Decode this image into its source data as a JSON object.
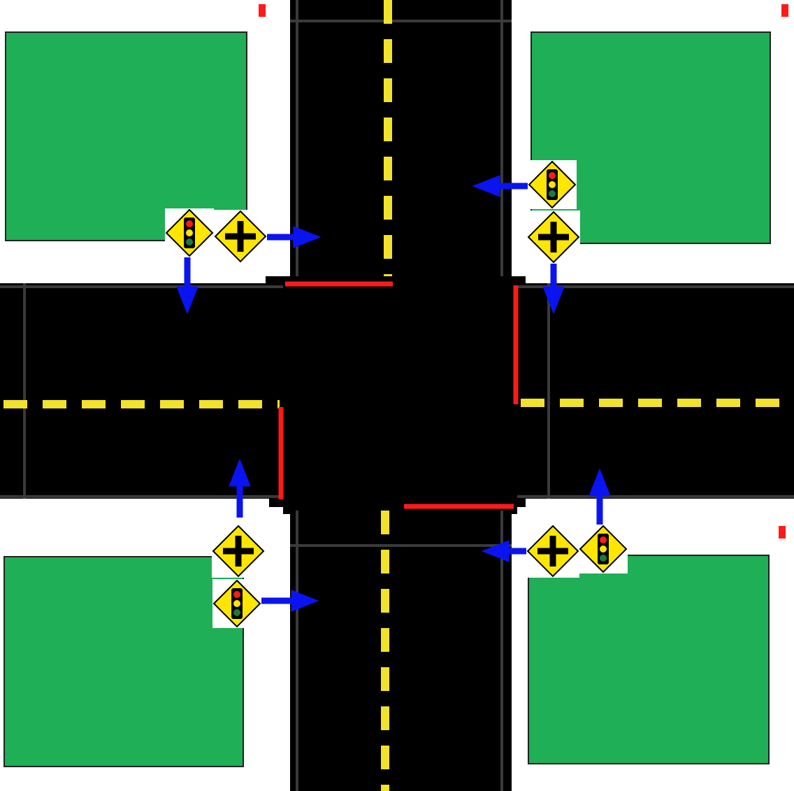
{
  "diagram": {
    "type": "four-way-intersection",
    "approaches": 4,
    "lanes_per_road": 2,
    "signs_per_corner": [
      "traffic-signal-ahead-sign",
      "crossroad-ahead-sign"
    ],
    "corners": [
      "north-west",
      "north-east",
      "south-west",
      "south-east"
    ]
  },
  "colors": {
    "grass": "#1faf56",
    "road": "#000000",
    "curb": "#ffffff",
    "center_line": "#f2e22c",
    "stop_line": "#ff1a1a",
    "arrow": "#0a14f0",
    "sign_yellow": "#ffe600",
    "signal_red": "#ff1a1a",
    "signal_yellow": "#ffe600",
    "signal_green": "#1f7a3a"
  }
}
